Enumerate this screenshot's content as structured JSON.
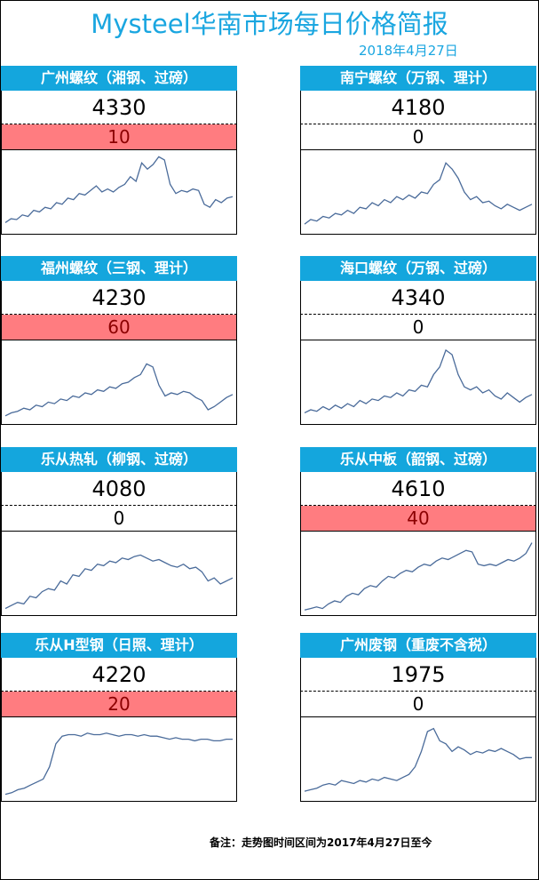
{
  "header": {
    "title": "Mysteel华南市场每日价格简报",
    "date": "2018年4月27日"
  },
  "cards": [
    {
      "name": "广州螺纹（湘钢、过磅）",
      "price": "4330",
      "change": "10",
      "change_highlight": true,
      "trend": [
        10,
        15,
        14,
        20,
        18,
        26,
        24,
        30,
        28,
        36,
        34,
        42,
        40,
        48,
        46,
        52,
        58,
        50,
        54,
        50,
        56,
        60,
        70,
        64,
        88,
        80,
        86,
        96,
        92,
        60,
        48,
        52,
        50,
        54,
        52,
        34,
        30,
        40,
        36,
        42,
        44
      ]
    },
    {
      "name": "南宁螺纹（万钢、理计）",
      "price": "4180",
      "change": "0",
      "change_highlight": false,
      "trend": [
        8,
        14,
        12,
        18,
        16,
        22,
        20,
        26,
        22,
        30,
        28,
        36,
        32,
        40,
        36,
        44,
        40,
        46,
        42,
        50,
        48,
        60,
        66,
        88,
        80,
        68,
        50,
        40,
        44,
        36,
        38,
        32,
        28,
        34,
        30,
        26,
        30,
        34
      ]
    },
    {
      "name": "福州螺纹（三钢、理计）",
      "price": "4230",
      "change": "60",
      "change_highlight": true,
      "trend": [
        6,
        10,
        12,
        16,
        14,
        20,
        18,
        24,
        22,
        28,
        26,
        32,
        30,
        36,
        34,
        40,
        38,
        44,
        42,
        48,
        50,
        56,
        60,
        74,
        70,
        46,
        32,
        36,
        34,
        38,
        36,
        30,
        26,
        14,
        18,
        24,
        30,
        34
      ]
    },
    {
      "name": "海口螺纹（万钢、过磅）",
      "price": "4340",
      "change": "0",
      "change_highlight": false,
      "trend": [
        10,
        14,
        12,
        18,
        14,
        20,
        16,
        22,
        18,
        26,
        22,
        28,
        26,
        32,
        30,
        36,
        32,
        40,
        38,
        46,
        44,
        60,
        70,
        92,
        86,
        60,
        44,
        40,
        44,
        36,
        40,
        32,
        28,
        36,
        30,
        24,
        30,
        34
      ]
    },
    {
      "name": "乐从热轧（柳钢、过磅）",
      "price": "4080",
      "change": "0",
      "change_highlight": false,
      "trend": [
        4,
        8,
        12,
        10,
        20,
        18,
        26,
        30,
        28,
        40,
        36,
        48,
        46,
        56,
        54,
        62,
        60,
        66,
        64,
        70,
        68,
        72,
        74,
        70,
        66,
        68,
        64,
        60,
        58,
        62,
        56,
        58,
        52,
        40,
        44,
        36,
        40,
        44
      ]
    },
    {
      "name": "乐从中板（韶钢、过磅）",
      "price": "4610",
      "change": "40",
      "change_highlight": true,
      "trend": [
        2,
        4,
        6,
        4,
        10,
        14,
        12,
        20,
        24,
        22,
        30,
        34,
        32,
        40,
        46,
        44,
        50,
        54,
        52,
        58,
        62,
        60,
        66,
        70,
        68,
        72,
        76,
        80,
        78,
        62,
        60,
        62,
        60,
        64,
        68,
        66,
        70,
        76,
        90
      ]
    },
    {
      "name": "乐从H型钢（日照、理计）",
      "price": "4220",
      "change": "20",
      "change_highlight": true,
      "trend": [
        4,
        6,
        10,
        12,
        16,
        20,
        24,
        40,
        70,
        80,
        82,
        82,
        80,
        84,
        82,
        82,
        84,
        82,
        80,
        82,
        82,
        80,
        82,
        80,
        80,
        78,
        76,
        78,
        76,
        76,
        74,
        76,
        76,
        74,
        74,
        76,
        76
      ]
    },
    {
      "name": "广州废钢（重废不含税）",
      "price": "1975",
      "change": "0",
      "change_highlight": false,
      "trend": [
        8,
        10,
        12,
        16,
        18,
        16,
        22,
        20,
        18,
        22,
        20,
        24,
        22,
        26,
        24,
        22,
        26,
        30,
        40,
        60,
        86,
        90,
        74,
        70,
        60,
        66,
        62,
        56,
        60,
        58,
        62,
        60,
        64,
        60,
        56,
        50,
        52,
        52
      ]
    }
  ],
  "note": "备注：走势图时间区间为2017年4月27日至今",
  "colors": {
    "accent": "#14a6dd",
    "title": "#1aa6e0",
    "highlight": "#ff7c80",
    "line": "#4a6b9a"
  }
}
